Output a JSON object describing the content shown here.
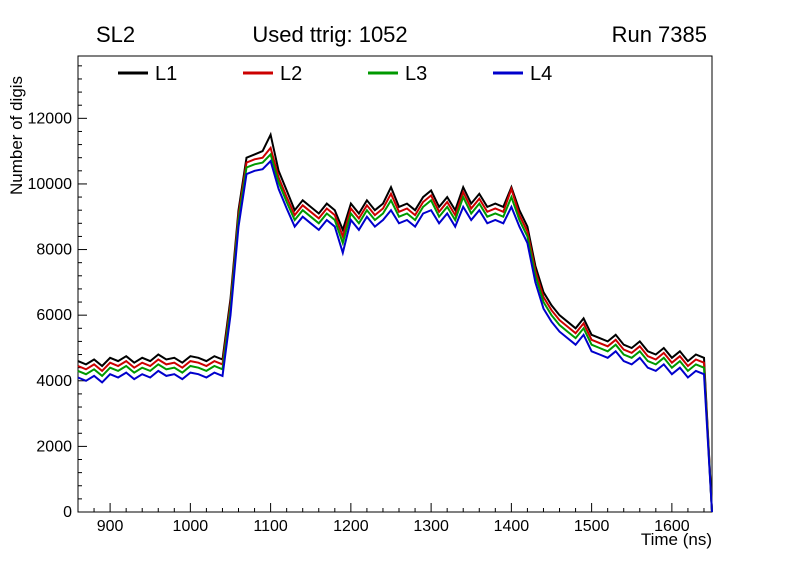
{
  "header": {
    "left": "SL2",
    "center": "Used ttrig: 1052",
    "right": "Run 7385"
  },
  "chart_data": {
    "type": "line",
    "title": "Used ttrig: 1052",
    "subtitle_left": "SL2",
    "subtitle_right": "Run 7385",
    "xlabel": "Time (ns)",
    "ylabel": "Number of digis",
    "xlim": [
      860,
      1650
    ],
    "ylim": [
      0,
      13900
    ],
    "grid": false,
    "legend_position": "top-inside-horizontal",
    "x_ticks": [
      900,
      1000,
      1100,
      1200,
      1300,
      1400,
      1500,
      1600
    ],
    "y_ticks": [
      0,
      2000,
      4000,
      6000,
      8000,
      10000,
      12000
    ],
    "x": [
      860,
      870,
      880,
      890,
      900,
      910,
      920,
      930,
      940,
      950,
      960,
      970,
      980,
      990,
      1000,
      1010,
      1020,
      1030,
      1040,
      1050,
      1060,
      1070,
      1080,
      1090,
      1100,
      1110,
      1120,
      1130,
      1140,
      1150,
      1160,
      1170,
      1180,
      1190,
      1200,
      1210,
      1220,
      1230,
      1240,
      1250,
      1260,
      1270,
      1280,
      1290,
      1300,
      1310,
      1320,
      1330,
      1340,
      1350,
      1360,
      1370,
      1380,
      1390,
      1400,
      1410,
      1420,
      1430,
      1440,
      1450,
      1460,
      1470,
      1480,
      1490,
      1500,
      1510,
      1520,
      1530,
      1540,
      1550,
      1560,
      1570,
      1580,
      1590,
      1600,
      1610,
      1620,
      1630,
      1640,
      1650
    ],
    "series": [
      {
        "name": "L1",
        "color": "#000000",
        "values": [
          4600,
          4500,
          4650,
          4450,
          4700,
          4600,
          4750,
          4550,
          4700,
          4600,
          4800,
          4650,
          4700,
          4550,
          4750,
          4700,
          4600,
          4750,
          4650,
          6500,
          9200,
          10800,
          10900,
          11000,
          11500,
          10400,
          9800,
          9200,
          9500,
          9300,
          9100,
          9400,
          9200,
          8600,
          9400,
          9100,
          9500,
          9200,
          9400,
          9900,
          9300,
          9400,
          9200,
          9600,
          9800,
          9300,
          9600,
          9200,
          9900,
          9400,
          9700,
          9300,
          9400,
          9300,
          9900,
          9200,
          8700,
          7500,
          6700,
          6300,
          6000,
          5800,
          5600,
          5900,
          5400,
          5300,
          5200,
          5400,
          5100,
          5000,
          5200,
          4900,
          4800,
          5000,
          4700,
          4900,
          4600,
          4800,
          4700,
          0
        ]
      },
      {
        "name": "L2",
        "color": "#cc0000",
        "values": [
          4450,
          4350,
          4500,
          4300,
          4550,
          4450,
          4600,
          4400,
          4550,
          4450,
          4650,
          4500,
          4550,
          4400,
          4600,
          4550,
          4450,
          4600,
          4500,
          6350,
          9050,
          10650,
          10750,
          10800,
          11100,
          10200,
          9600,
          9050,
          9350,
          9150,
          8950,
          9250,
          9050,
          8400,
          9250,
          8950,
          9350,
          9050,
          9250,
          9700,
          9150,
          9250,
          9050,
          9450,
          9650,
          9150,
          9450,
          9050,
          9750,
          9250,
          9550,
          9150,
          9250,
          9150,
          9850,
          9050,
          8550,
          7350,
          6550,
          6150,
          5850,
          5650,
          5450,
          5750,
          5250,
          5150,
          5050,
          5250,
          4950,
          4850,
          5050,
          4750,
          4650,
          4850,
          4550,
          4750,
          4450,
          4650,
          4550,
          0
        ]
      },
      {
        "name": "L3",
        "color": "#009900",
        "values": [
          4300,
          4200,
          4350,
          4150,
          4400,
          4300,
          4450,
          4250,
          4400,
          4300,
          4500,
          4350,
          4400,
          4250,
          4450,
          4400,
          4300,
          4450,
          4350,
          6200,
          8900,
          10500,
          10600,
          10650,
          10900,
          10050,
          9450,
          8900,
          9200,
          9000,
          8800,
          9100,
          8900,
          8200,
          9100,
          8800,
          9200,
          8900,
          9100,
          9500,
          9000,
          9100,
          8900,
          9300,
          9500,
          9000,
          9300,
          8900,
          9600,
          9100,
          9400,
          9000,
          9100,
          9000,
          9600,
          8900,
          8400,
          7200,
          6400,
          6000,
          5700,
          5500,
          5300,
          5600,
          5100,
          5000,
          4900,
          5100,
          4800,
          4700,
          4900,
          4600,
          4500,
          4700,
          4400,
          4600,
          4300,
          4500,
          4400,
          0
        ]
      },
      {
        "name": "L4",
        "color": "#0000cc",
        "values": [
          4100,
          4000,
          4150,
          3950,
          4200,
          4100,
          4250,
          4050,
          4200,
          4100,
          4300,
          4150,
          4200,
          4050,
          4250,
          4200,
          4100,
          4250,
          4150,
          6000,
          8700,
          10300,
          10400,
          10450,
          10700,
          9850,
          9250,
          8700,
          9000,
          8800,
          8600,
          8900,
          8700,
          7900,
          8900,
          8600,
          9000,
          8700,
          8900,
          9200,
          8800,
          8900,
          8700,
          9100,
          9200,
          8800,
          9100,
          8700,
          9300,
          8900,
          9200,
          8800,
          8900,
          8800,
          9300,
          8700,
          8200,
          7000,
          6200,
          5800,
          5500,
          5300,
          5100,
          5400,
          4900,
          4800,
          4700,
          4900,
          4600,
          4500,
          4700,
          4400,
          4300,
          4500,
          4200,
          4400,
          4100,
          4300,
          4200,
          0
        ]
      }
    ]
  }
}
